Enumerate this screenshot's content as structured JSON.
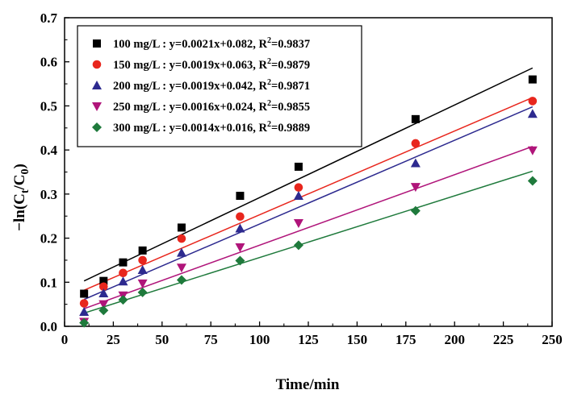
{
  "chart_data": {
    "type": "scatter",
    "xlabel": "Time/min",
    "ylabel": "−ln(C_t/C_0)",
    "ylabel_parts": {
      "a": "−ln(C",
      "b": "t",
      "c": "/C",
      "d": "0",
      "e": ")"
    },
    "xlim": [
      0,
      250
    ],
    "ylim": [
      0,
      0.7
    ],
    "x_ticks": [
      "0",
      "25",
      "50",
      "75",
      "100",
      "125",
      "150",
      "175",
      "200",
      "225",
      "250"
    ],
    "y_ticks": [
      "0.0",
      "0.1",
      "0.2",
      "0.3",
      "0.4",
      "0.5",
      "0.6",
      "0.7"
    ],
    "grid": false,
    "legend_position": "top-left",
    "x": [
      10,
      20,
      30,
      40,
      60,
      90,
      120,
      180,
      240
    ],
    "series": [
      {
        "name": "100 mg/L : y=0.0021x+0.082, R2=0.9837",
        "legend": {
          "pre": "100  mg/L : y=0.0021x+0.082, R",
          "sup": "2",
          "post": "=0.9837"
        },
        "marker": "square",
        "color": "#000000",
        "values": [
          0.074,
          0.103,
          0.145,
          0.172,
          0.224,
          0.296,
          0.362,
          0.47,
          0.56
        ],
        "fit": {
          "slope": 0.0021,
          "intercept": 0.082
        }
      },
      {
        "name": "150 mg/L : y=0.0019x+0.063, R2=0.9879",
        "legend": {
          "pre": "150  mg/L : y=0.0019x+0.063, R",
          "sup": "2",
          "post": "=0.9879"
        },
        "marker": "circle",
        "color": "#e8261d",
        "values": [
          0.052,
          0.09,
          0.121,
          0.15,
          0.199,
          0.249,
          0.315,
          0.415,
          0.511
        ],
        "fit": {
          "slope": 0.0019,
          "intercept": 0.063
        }
      },
      {
        "name": "200 mg/L : y=0.0019x+0.042, R2=0.9871",
        "legend": {
          "pre": "200  mg/L : y=0.0019x+0.042, R",
          "sup": "2",
          "post": "=0.9871"
        },
        "marker": "triangle-up",
        "color": "#2d2a8f",
        "values": [
          0.033,
          0.075,
          0.102,
          0.128,
          0.167,
          0.222,
          0.296,
          0.37,
          0.482
        ],
        "fit": {
          "slope": 0.0019,
          "intercept": 0.042
        }
      },
      {
        "name": "250 mg/L : y=0.0016x+0.024, R2=0.9855",
        "legend": {
          "pre": "250  mg/L : y=0.0016x+0.024, R",
          "sup": "2",
          "post": "=0.9855"
        },
        "marker": "triangle-down",
        "color": "#b0157a",
        "values": [
          0.01,
          0.05,
          0.07,
          0.097,
          0.133,
          0.179,
          0.234,
          0.316,
          0.399
        ],
        "fit": {
          "slope": 0.0016,
          "intercept": 0.024
        }
      },
      {
        "name": "300 mg/L : y=0.0014x+0.016, R2=0.9889",
        "legend": {
          "pre": "300  mg/L : y=0.0014x+0.016, R",
          "sup": "2",
          "post": "=0.9889"
        },
        "marker": "diamond",
        "color": "#1f7a3c",
        "values": [
          0.008,
          0.036,
          0.06,
          0.077,
          0.105,
          0.149,
          0.184,
          0.262,
          0.33
        ],
        "fit": {
          "slope": 0.0014,
          "intercept": 0.016
        }
      }
    ]
  }
}
